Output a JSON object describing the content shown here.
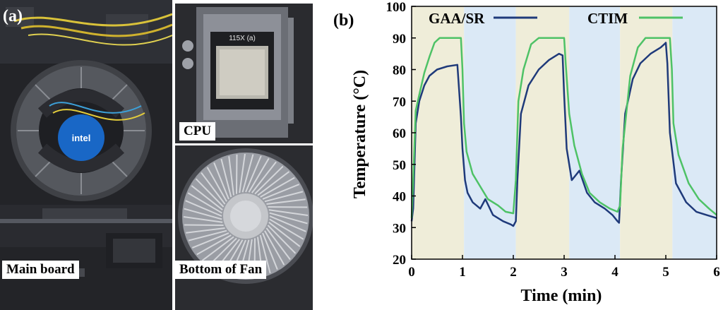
{
  "panel_a": {
    "letter": "(a)",
    "labels": {
      "main_board": "Main board",
      "cpu": "CPU",
      "fan_bottom": "Bottom of Fan"
    },
    "fan_sticker_text": "intel",
    "cpu_engraving": "115X (a)"
  },
  "chart_data": {
    "type": "line",
    "panel_letter": "(b)",
    "xlabel": "Time (min)",
    "ylabel": "Temperature (°C)",
    "xlim": [
      0,
      6
    ],
    "ylim": [
      20,
      100
    ],
    "xticks": [
      "0",
      "1",
      "2",
      "3",
      "4",
      "5",
      "6"
    ],
    "yticks": [
      "20",
      "30",
      "40",
      "50",
      "60",
      "70",
      "80",
      "90",
      "100"
    ],
    "background_bands": [
      {
        "from": 0,
        "to": 1.03,
        "color": "#efedd9"
      },
      {
        "from": 1.03,
        "to": 2.05,
        "color": "#dbe9f6"
      },
      {
        "from": 2.05,
        "to": 3.1,
        "color": "#efedd9"
      },
      {
        "from": 3.1,
        "to": 4.1,
        "color": "#dbe9f6"
      },
      {
        "from": 4.1,
        "to": 5.13,
        "color": "#efedd9"
      },
      {
        "from": 5.13,
        "to": 6.0,
        "color": "#dbe9f6"
      }
    ],
    "legend_placement": "top",
    "series": [
      {
        "name": "GAA/SR",
        "color": "#1f3a7a",
        "x": [
          0,
          0.03,
          0.08,
          0.15,
          0.25,
          0.35,
          0.5,
          0.7,
          0.9,
          0.94,
          0.97,
          1.0,
          1.05,
          1.1,
          1.2,
          1.35,
          1.45,
          1.6,
          1.8,
          1.95,
          2.0,
          2.05,
          2.08,
          2.15,
          2.3,
          2.5,
          2.7,
          2.9,
          2.97,
          3.0,
          3.05,
          3.15,
          3.3,
          3.45,
          3.6,
          3.8,
          3.95,
          4.05,
          4.08,
          4.12,
          4.2,
          4.35,
          4.5,
          4.7,
          4.9,
          4.97,
          5.0,
          5.03,
          5.08,
          5.2,
          5.4,
          5.6,
          5.8,
          6.0
        ],
        "y": [
          32,
          36,
          63,
          70,
          75,
          78,
          80,
          81,
          81.5,
          72,
          65,
          55,
          45,
          41,
          38,
          36,
          39,
          34,
          32,
          31,
          30.5,
          32,
          45,
          66,
          75,
          80,
          83,
          85,
          84.5,
          72,
          55,
          45,
          48,
          41,
          38,
          36,
          34,
          32,
          31.5,
          45,
          66,
          77,
          82,
          85,
          87,
          88,
          88.5,
          82,
          60,
          44,
          38,
          35,
          34,
          33
        ]
      },
      {
        "name": "CTIM",
        "color": "#4ec266",
        "x": [
          0,
          0.03,
          0.08,
          0.15,
          0.25,
          0.35,
          0.45,
          0.55,
          0.65,
          0.75,
          0.85,
          0.97,
          1.0,
          1.03,
          1.08,
          1.2,
          1.35,
          1.5,
          1.7,
          1.85,
          2.0,
          2.05,
          2.1,
          2.2,
          2.35,
          2.5,
          2.7,
          2.85,
          3.0,
          3.03,
          3.1,
          3.2,
          3.35,
          3.5,
          3.7,
          3.9,
          4.05,
          4.1,
          4.15,
          4.3,
          4.45,
          4.6,
          4.8,
          4.95,
          5.08,
          5.12,
          5.15,
          5.25,
          5.45,
          5.65,
          5.85,
          6.0
        ],
        "y": [
          33,
          45,
          67,
          72,
          79,
          84,
          88.5,
          90,
          90,
          90,
          90,
          90,
          80,
          63,
          54,
          47,
          43,
          39,
          37,
          35,
          34.5,
          45,
          70,
          80,
          88,
          90,
          90,
          90,
          90,
          82,
          66,
          56,
          47,
          41,
          38,
          36,
          35,
          37,
          55,
          78,
          87,
          90,
          90,
          90,
          90,
          80,
          63,
          53,
          44,
          39,
          36,
          34
        ]
      }
    ]
  }
}
